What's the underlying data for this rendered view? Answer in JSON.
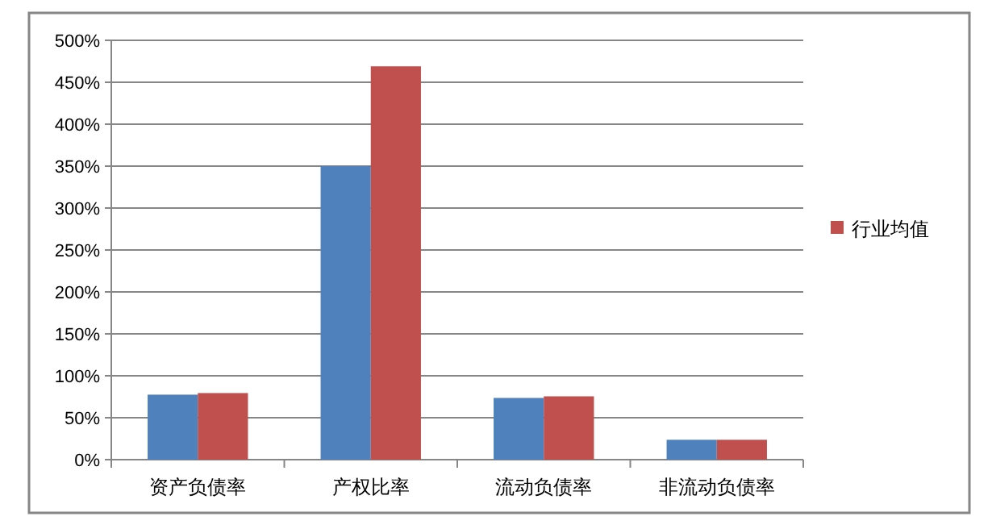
{
  "chart_data": {
    "type": "bar",
    "categories": [
      "资产负债率",
      "产权比率",
      "流动负债率",
      "非流动负债率"
    ],
    "series": [
      {
        "color": "#4f81bd",
        "values": [
          77.5,
          350,
          73.6,
          23.7
        ]
      },
      {
        "name": "行业均值",
        "color": "#c0504d",
        "values": [
          79.4,
          469,
          75.5,
          23.7
        ]
      }
    ],
    "ylim": [
      0,
      500
    ],
    "yticks": [
      {
        "value": 0,
        "label": "0%"
      },
      {
        "value": 50,
        "label": "50%"
      },
      {
        "value": 100,
        "label": "100%"
      },
      {
        "value": 150,
        "label": "150%"
      },
      {
        "value": 200,
        "label": "200%"
      },
      {
        "value": 250,
        "label": "250%"
      },
      {
        "value": 300,
        "label": "300%"
      },
      {
        "value": 350,
        "label": "350%"
      },
      {
        "value": 400,
        "label": "400%"
      },
      {
        "value": 450,
        "label": "450%"
      },
      {
        "value": 500,
        "label": "500%"
      }
    ],
    "grid": "y",
    "legend": "right"
  }
}
